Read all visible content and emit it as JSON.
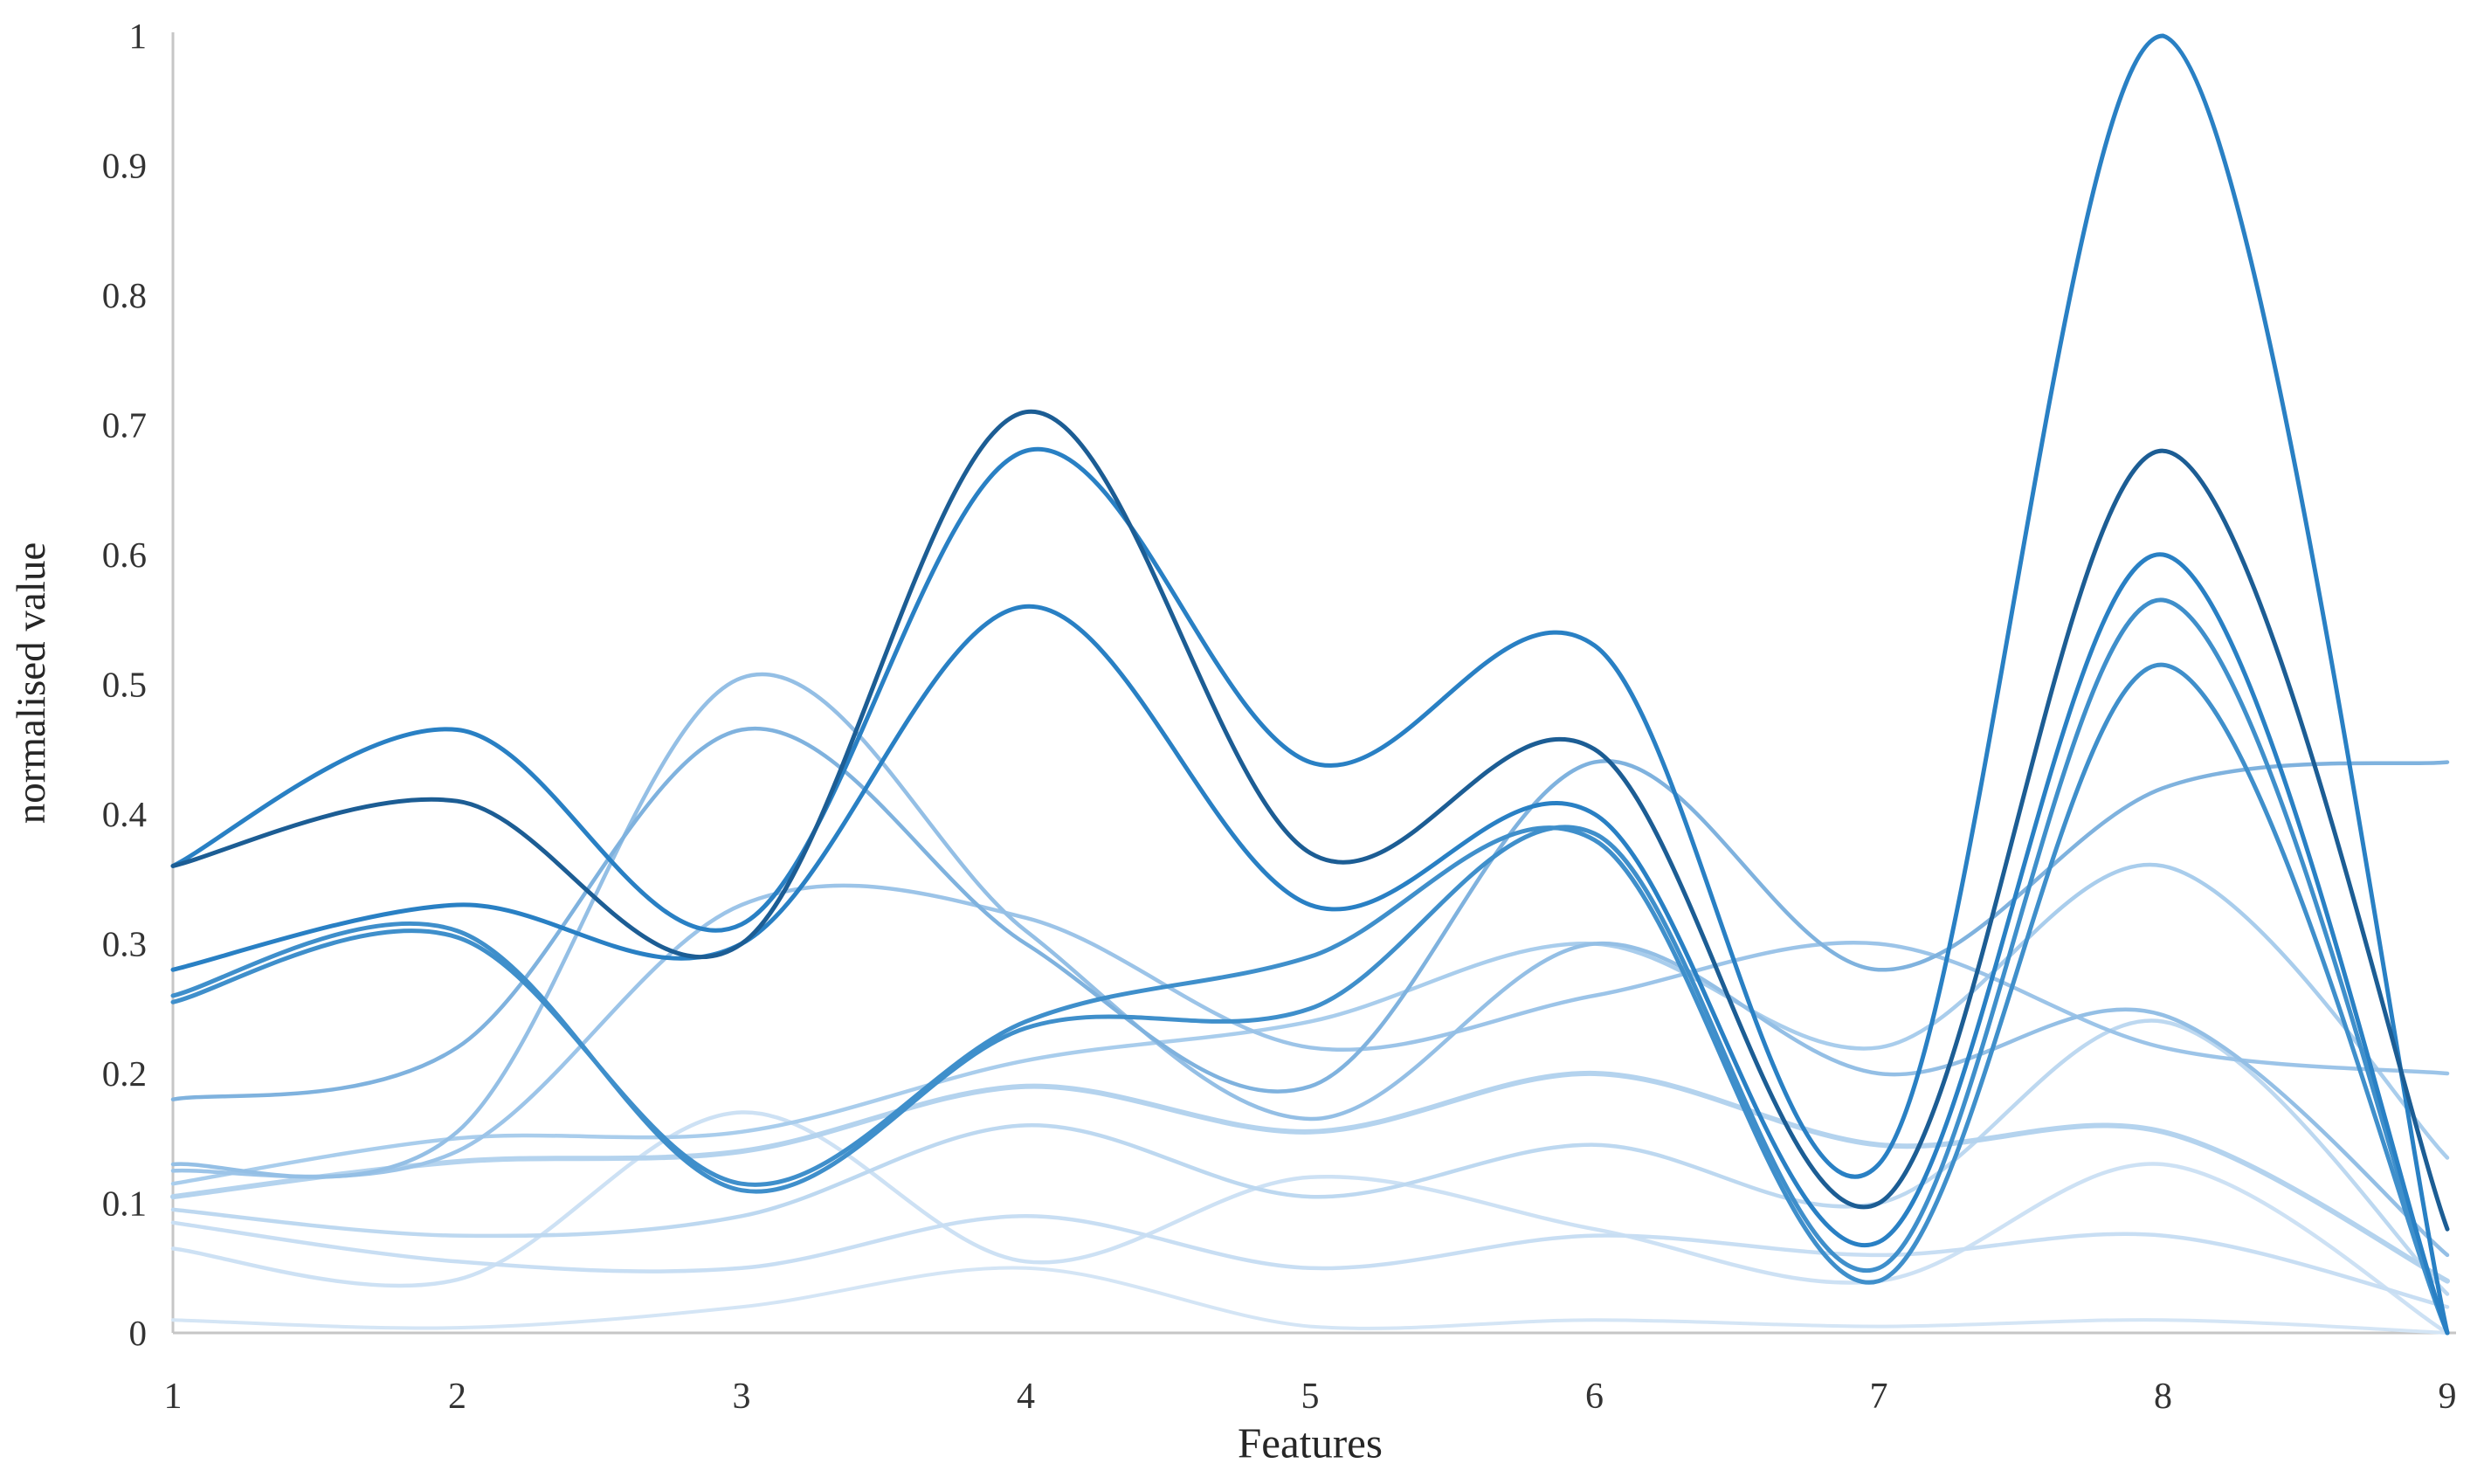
{
  "chart_data": {
    "type": "line",
    "title": "",
    "xlabel": "Features",
    "ylabel": "normalised value",
    "x": [
      1,
      2,
      3,
      4,
      5,
      6,
      7,
      8,
      9
    ],
    "x_tick_labels": [
      "1",
      "2",
      "3",
      "4",
      "5",
      "6",
      "7",
      "8",
      "9"
    ],
    "y_tick_labels": [
      "0",
      "0.1",
      "0.2",
      "0.3",
      "0.4",
      "0.5",
      "0.6",
      "0.7",
      "0.8",
      "0.9",
      "1"
    ],
    "xlim": [
      1,
      9
    ],
    "ylim": [
      0,
      1
    ],
    "grid": false,
    "legend": "none",
    "line_style": "smooth-spline",
    "axis_color": "#c6c6c6",
    "text_color": "#333333",
    "series": [
      {
        "color": "#1c5d94",
        "stroke_width": 5,
        "values": [
          0.36,
          0.41,
          0.3,
          0.71,
          0.37,
          0.45,
          0.1,
          0.68,
          0.08
        ]
      },
      {
        "color": "#2980c4",
        "stroke_width": 5,
        "values": [
          0.36,
          0.465,
          0.315,
          0.68,
          0.44,
          0.53,
          0.13,
          1.0,
          0.0
        ]
      },
      {
        "color": "#2980c4",
        "stroke_width": 5,
        "values": [
          0.28,
          0.33,
          0.3,
          0.56,
          0.33,
          0.4,
          0.07,
          0.6,
          0.0
        ]
      },
      {
        "color": "#3f8fcb",
        "stroke_width": 5,
        "values": [
          0.26,
          0.31,
          0.11,
          0.235,
          0.25,
          0.385,
          0.05,
          0.565,
          0.0
        ]
      },
      {
        "color": "#3f8fcb",
        "stroke_width": 5,
        "values": [
          0.255,
          0.305,
          0.115,
          0.24,
          0.29,
          0.38,
          0.04,
          0.515,
          0.0
        ]
      },
      {
        "color": "#7fb2de",
        "stroke_width": 4.5,
        "values": [
          0.18,
          0.22,
          0.465,
          0.3,
          0.19,
          0.44,
          0.28,
          0.42,
          0.44
        ]
      },
      {
        "color": "#94bfe5",
        "stroke_width": 4.5,
        "values": [
          0.13,
          0.155,
          0.505,
          0.31,
          0.165,
          0.3,
          0.2,
          0.245,
          0.06
        ]
      },
      {
        "color": "#9cc4e8",
        "stroke_width": 4.5,
        "values": [
          0.125,
          0.14,
          0.33,
          0.32,
          0.22,
          0.26,
          0.3,
          0.22,
          0.2
        ]
      },
      {
        "color": "#a9cdec",
        "stroke_width": 4.5,
        "values": [
          0.115,
          0.15,
          0.155,
          0.21,
          0.24,
          0.3,
          0.22,
          0.36,
          0.135
        ]
      },
      {
        "color": "#b4d3ee",
        "stroke_width": 6,
        "values": [
          0.105,
          0.132,
          0.14,
          0.19,
          0.155,
          0.2,
          0.145,
          0.155,
          0.04
        ]
      },
      {
        "color": "#bdd8f0",
        "stroke_width": 4.5,
        "values": [
          0.095,
          0.075,
          0.09,
          0.16,
          0.105,
          0.145,
          0.1,
          0.24,
          0.03
        ]
      },
      {
        "color": "#c8def3",
        "stroke_width": 4.5,
        "values": [
          0.085,
          0.055,
          0.05,
          0.09,
          0.05,
          0.075,
          0.06,
          0.075,
          0.02
        ]
      },
      {
        "color": "#cde1f4",
        "stroke_width": 4.5,
        "values": [
          0.065,
          0.041,
          0.17,
          0.055,
          0.12,
          0.08,
          0.04,
          0.13,
          0.0
        ]
      },
      {
        "color": "#d4e5f5",
        "stroke_width": 4,
        "values": [
          0.01,
          0.004,
          0.02,
          0.05,
          0.005,
          0.01,
          0.005,
          0.01,
          0.0
        ]
      }
    ]
  }
}
